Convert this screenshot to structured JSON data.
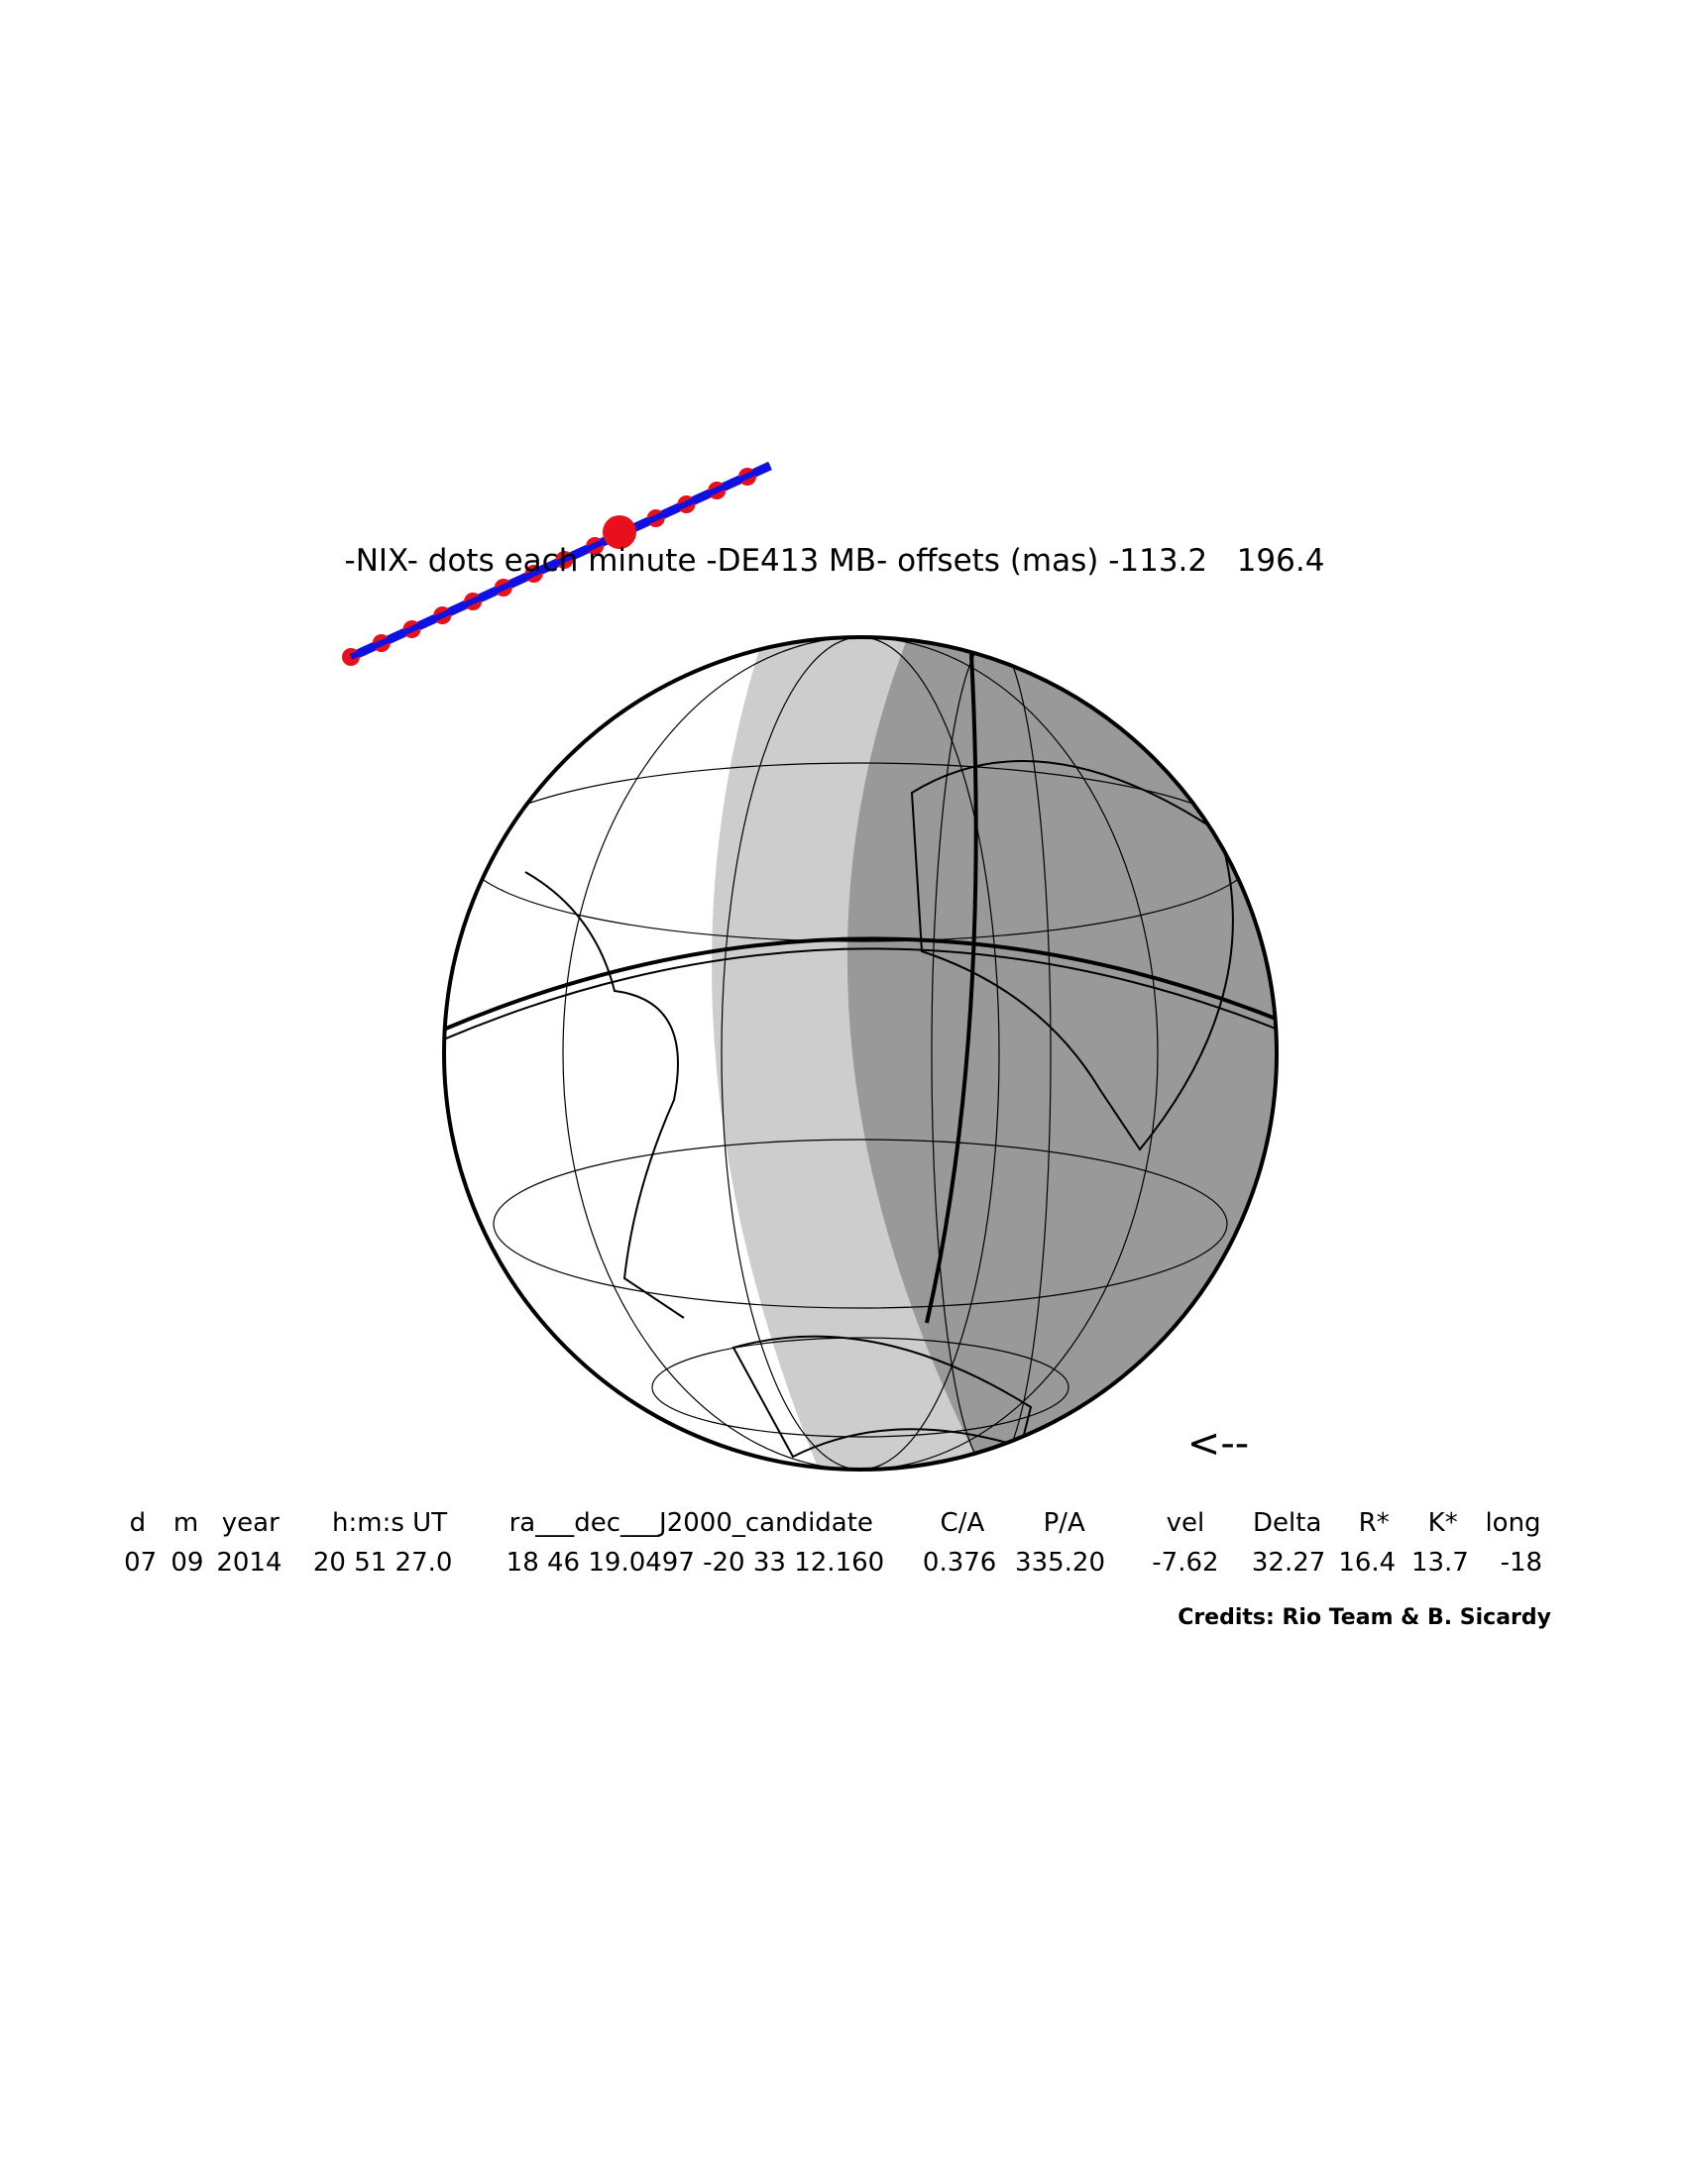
{
  "title": "-NIX- dots each minute -DE413 MB- offsets (mas) -113.2   196.4",
  "direction_arrow": "<--",
  "table": {
    "headers": [
      "d",
      "m",
      "year",
      "h:m:s UT",
      "ra___dec___J2000_candidate",
      "C/A",
      "P/A",
      "vel",
      "Delta",
      "R*",
      "K*",
      "long"
    ],
    "rows": [
      [
        "07",
        "09",
        "2014",
        "20 51 27.0",
        "18 46 19.0497 -20 33 12.160",
        "0.376",
        "335.20",
        "-7.62",
        "32.27",
        "16.4",
        "13.7",
        "-18"
      ]
    ]
  },
  "credits": "Credits: Rio Team & B. Sicardy"
}
